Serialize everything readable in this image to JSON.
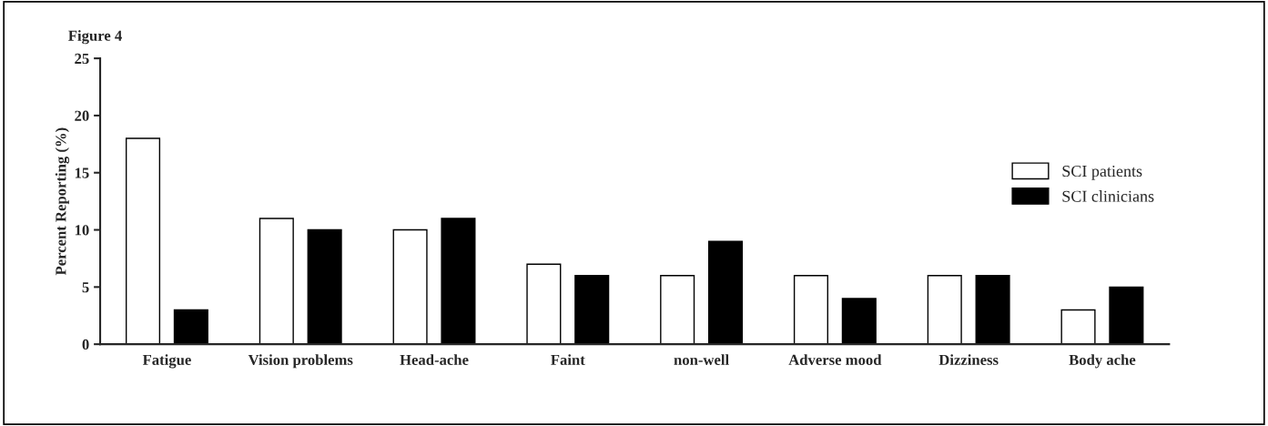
{
  "chart_data": {
    "type": "bar",
    "title": "Figure 4",
    "ylabel": "Percent Reporting (%)",
    "categories": [
      "Fatigue",
      "Vision problems",
      "Head-ache",
      "Faint",
      "non-well",
      "Adverse mood",
      "Dizziness",
      "Body ache"
    ],
    "series": [
      {
        "name": "SCI patients",
        "color": "#ffffff",
        "values": [
          18,
          11,
          10,
          7,
          6,
          6,
          6,
          3
        ]
      },
      {
        "name": "SCI clinicians",
        "color": "#000000",
        "values": [
          3,
          10,
          11,
          6,
          9,
          4,
          6,
          5
        ]
      }
    ],
    "ylim": [
      0,
      25
    ],
    "yticks": [
      0,
      5,
      10,
      15,
      20,
      25
    ],
    "grid": false,
    "legend": "right"
  }
}
